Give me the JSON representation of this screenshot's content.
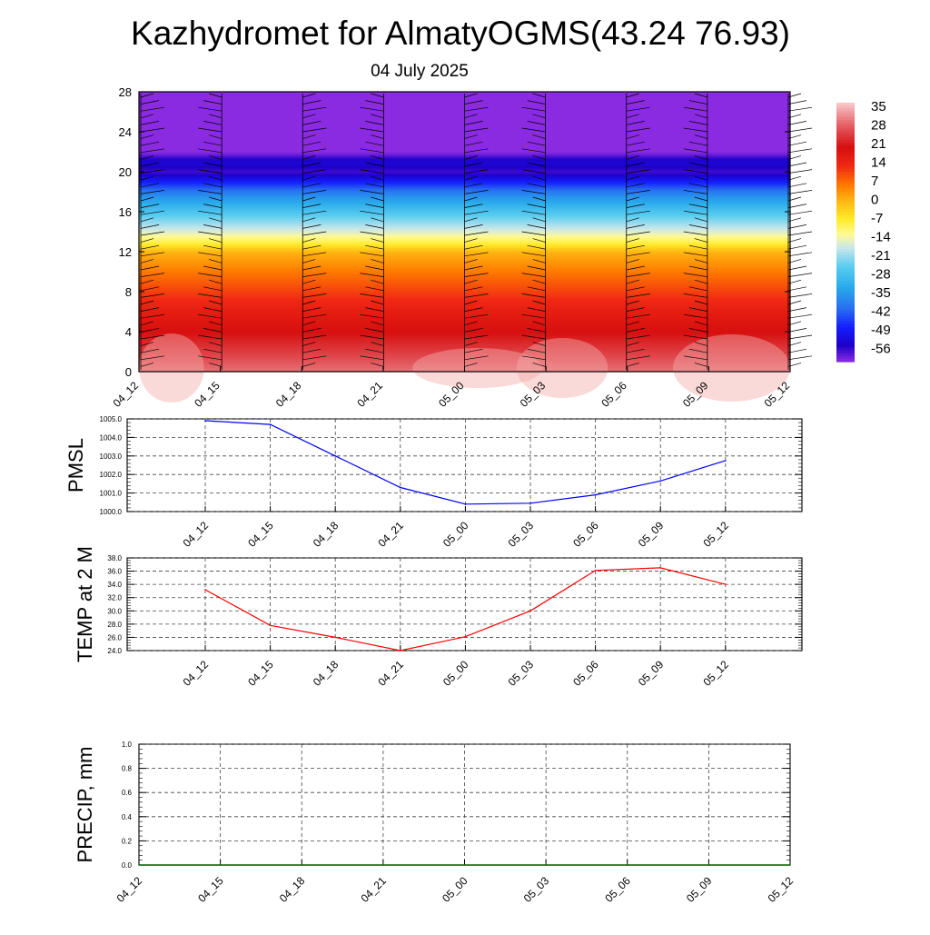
{
  "title": "Kazhydromet for AlmatyOGMS(43.24 76.93)",
  "subtitle": "04 July 2025",
  "colors": {
    "pmsl_line": "#0000ff",
    "temp_line": "#ff0000",
    "precip_line": "#006400",
    "grid": "#444444"
  },
  "chart_data": [
    {
      "type": "heatmap",
      "name": "temperature-cross-section",
      "y_ticks": [
        "0",
        "4",
        "8",
        "12",
        "16",
        "20",
        "24",
        "28"
      ],
      "ylim": [
        0,
        28
      ],
      "x_ticks": [
        "04_12",
        "04_15",
        "04_18",
        "04_21",
        "05_00",
        "05_03",
        "05_06",
        "05_09",
        "05_12"
      ],
      "colorbar_labels": [
        "35",
        "28",
        "21",
        "14",
        "7",
        "0",
        "-7",
        "-14",
        "-21",
        "-28",
        "-35",
        "-42",
        "-49",
        "-56"
      ],
      "colorbar_range": [
        -60,
        38
      ],
      "profile": [
        {
          "h": 0,
          "t": 31
        },
        {
          "h": 2,
          "t": 26
        },
        {
          "h": 4,
          "t": 21
        },
        {
          "h": 6,
          "t": 17
        },
        {
          "h": 8,
          "t": 12
        },
        {
          "h": 10,
          "t": 7
        },
        {
          "h": 12,
          "t": 1
        },
        {
          "h": 13,
          "t": -8
        },
        {
          "h": 14,
          "t": -15
        },
        {
          "h": 16,
          "t": -26
        },
        {
          "h": 18,
          "t": -38
        },
        {
          "h": 20,
          "t": -56
        },
        {
          "h": 21,
          "t": -52
        },
        {
          "h": 22,
          "t": -60
        },
        {
          "h": 28,
          "t": -60
        }
      ]
    },
    {
      "type": "line",
      "name": "pmsl",
      "ylabel": "PMSL",
      "ylim": [
        1000,
        1005
      ],
      "y_ticks": [
        "1000.0",
        "1001.0",
        "1002.0",
        "1003.0",
        "1004.0",
        "1005.0"
      ],
      "categories": [
        "04_12",
        "04_15",
        "04_18",
        "04_21",
        "05_00",
        "05_03",
        "05_06",
        "05_09",
        "05_12"
      ],
      "values": [
        1004.9,
        1004.7,
        1003.0,
        1001.3,
        1000.4,
        1000.45,
        1000.9,
        1001.65,
        1002.75
      ]
    },
    {
      "type": "line",
      "name": "temp-2m",
      "ylabel": "TEMP at 2 M",
      "ylim": [
        24,
        38
      ],
      "y_ticks": [
        "24.0",
        "26.0",
        "28.0",
        "30.0",
        "32.0",
        "34.0",
        "36.0",
        "38.0"
      ],
      "categories": [
        "04_12",
        "04_15",
        "04_18",
        "04_21",
        "05_00",
        "05_03",
        "05_06",
        "05_09",
        "05_12"
      ],
      "values": [
        33.2,
        27.8,
        26.0,
        24.0,
        26.1,
        30.0,
        36.1,
        36.5,
        34.0
      ]
    },
    {
      "type": "line",
      "name": "precip",
      "ylabel": "PRECIP, mm",
      "ylim": [
        0,
        1
      ],
      "y_ticks": [
        "0.0",
        "0.2",
        "0.4",
        "0.6",
        "0.8",
        "1.0"
      ],
      "x_ticks": [
        "04_12",
        "04_15",
        "04_18",
        "04_21",
        "05_00",
        "05_03",
        "05_06",
        "05_09",
        "05_12"
      ],
      "values": [
        0,
        0,
        0,
        0,
        0,
        0,
        0,
        0,
        0
      ]
    }
  ]
}
